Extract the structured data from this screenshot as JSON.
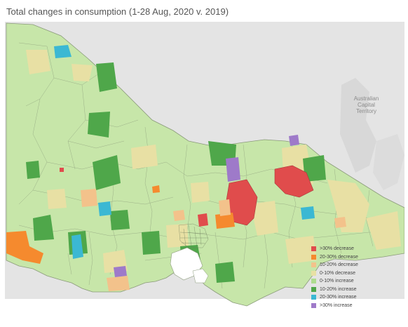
{
  "title": "Total changes in consumption (1-28 Aug, 2020 v. 2019)",
  "act_label_lines": [
    "Australian",
    "Capital",
    "Territory"
  ],
  "legend": [
    {
      "label": ">30% decrease",
      "color": "#e04c4c"
    },
    {
      "label": "20-30% decrease",
      "color": "#f58a2e"
    },
    {
      "label": "10-20% decrease",
      "color": "#f3c28b"
    },
    {
      "label": "0-10% decrease",
      "color": "#e8e0a4"
    },
    {
      "label": "0-10% increase",
      "color": "#aedc8f"
    },
    {
      "label": "10-20% increase",
      "color": "#4fa74a"
    },
    {
      "label": "20-30% increase",
      "color": "#3bb8d3"
    },
    {
      "label": ">30% increase",
      "color": "#9e7ac9"
    }
  ],
  "colors": {
    "land_outside": "#e4e4e4",
    "water": "#ffffff",
    "boundary": "#8a9a7a",
    "base_fill": "#c7e6a9"
  }
}
